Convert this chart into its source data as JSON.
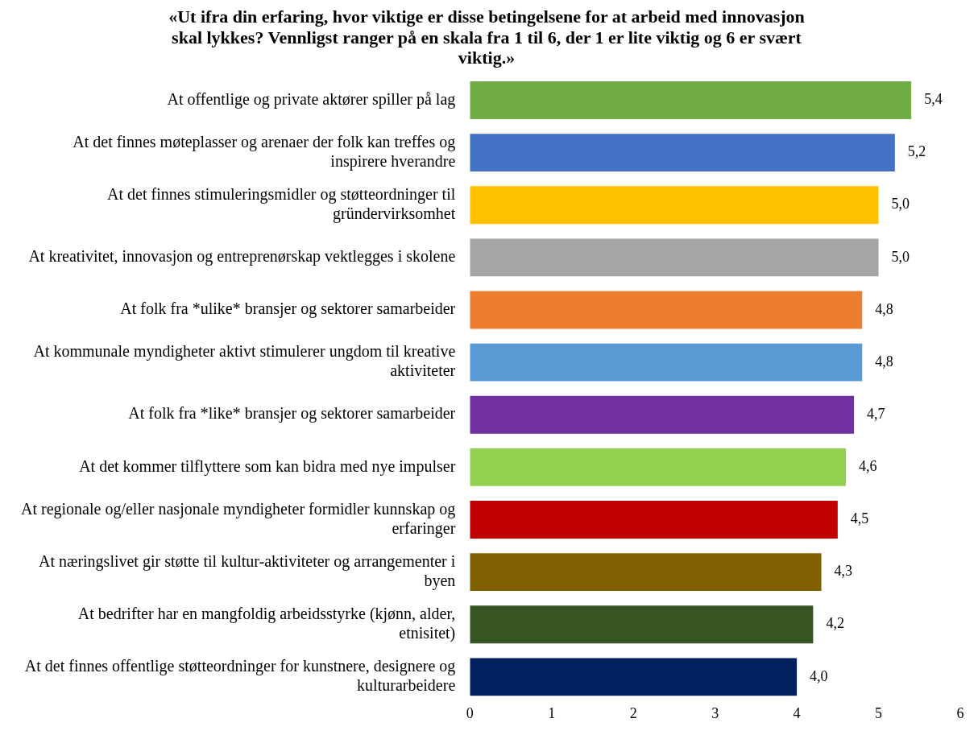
{
  "chart_data": {
    "type": "bar",
    "orientation": "horizontal",
    "title": "«Ut ifra din erfaring, hvor viktige er disse betingelsene for at arbeid med innovasjon skal lykkes? Vennligst ranger på en skala fra 1 til 6, der 1 er lite viktig og 6 er svært viktig.»",
    "categories": [
      "At offentlige og private aktører spiller på lag",
      "At det finnes møteplasser og arenaer der folk kan treffes og inspirere hverandre",
      "At det finnes stimuleringsmidler og støtteordninger til gründervirksomhet",
      "At kreativitet, innovasjon og entreprenørskap vektlegges i skolene",
      "At folk fra *ulike* bransjer og sektorer samarbeider",
      "At kommunale myndigheter aktivt stimulerer ungdom til kreative aktiviteter",
      "At folk fra *like* bransjer og sektorer samarbeider",
      "At det kommer tilflyttere som kan bidra med nye impulser",
      "At regionale og/eller nasjonale myndigheter formidler kunnskap og erfaringer",
      "At næringslivet gir støtte til kultur-aktiviteter og arrangementer i byen",
      "At bedrifter har en mangfoldig arbeidsstyrke (kjønn, alder, etnisitet)",
      "At det finnes offentlige støtteordninger for kunstnere, designere og kulturarbeidere"
    ],
    "values": [
      5.4,
      5.2,
      5.0,
      5.0,
      4.8,
      4.8,
      4.7,
      4.6,
      4.5,
      4.3,
      4.2,
      4.0
    ],
    "value_labels": [
      "5,4",
      "5,2",
      "5,0",
      "5,0",
      "4,8",
      "4,8",
      "4,7",
      "4,6",
      "4,5",
      "4,3",
      "4,2",
      "4,0"
    ],
    "colors": [
      "#70ad47",
      "#4472c4",
      "#ffc000",
      "#a5a5a5",
      "#ed7d31",
      "#5b9bd5",
      "#7030a0",
      "#92d050",
      "#c00000",
      "#7f6000",
      "#375623",
      "#002060"
    ],
    "xlim": [
      0,
      6
    ],
    "xticks": [
      0,
      1,
      2,
      3,
      4,
      5,
      6
    ],
    "grid": false,
    "legend": false
  }
}
